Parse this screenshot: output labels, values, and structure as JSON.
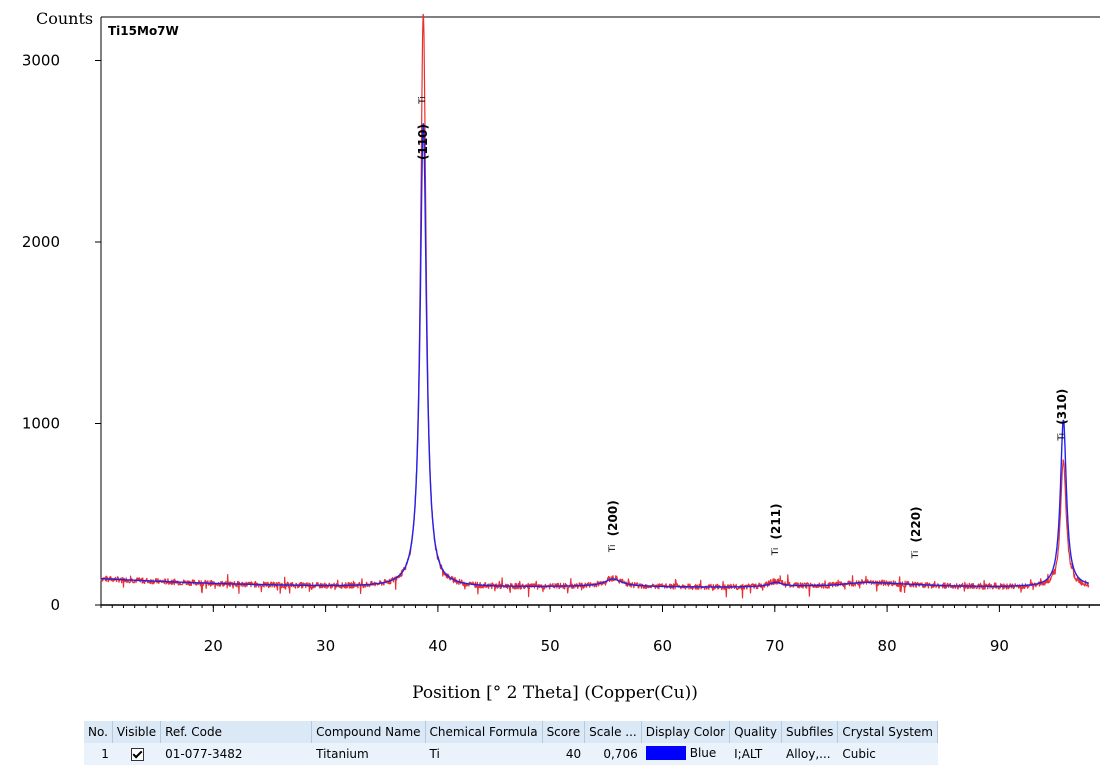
{
  "chart_data": {
    "type": "line",
    "sample_label": "Ti15Mo7W",
    "ylabel": "Counts",
    "xlabel": "Position [°  2 Theta] (Copper(Cu))",
    "xlim": [
      10,
      98
    ],
    "ylim": [
      0,
      3200
    ],
    "x_ticks": [
      20,
      30,
      40,
      50,
      60,
      70,
      80,
      90
    ],
    "y_ticks": [
      0,
      1000,
      2000,
      3000
    ],
    "baseline": [
      [
        10,
        145
      ],
      [
        15,
        130
      ],
      [
        20,
        118
      ],
      [
        25,
        110
      ],
      [
        30,
        103
      ],
      [
        35,
        100
      ],
      [
        45,
        98
      ],
      [
        50,
        100
      ],
      [
        55,
        103
      ],
      [
        60,
        100
      ],
      [
        65,
        98
      ],
      [
        70,
        100
      ],
      [
        75,
        108
      ],
      [
        78,
        125
      ],
      [
        80,
        120
      ],
      [
        85,
        105
      ],
      [
        90,
        100
      ],
      [
        95,
        100
      ],
      [
        98,
        102
      ]
    ],
    "series": [
      {
        "color": "#e8312f",
        "peaks": [
          {
            "center": 38.7,
            "height": 3160,
            "width": 0.3
          },
          {
            "center": 55.6,
            "height": 45,
            "width": 0.9
          },
          {
            "center": 70.1,
            "height": 30,
            "width": 0.7
          },
          {
            "center": 95.7,
            "height": 700,
            "width": 0.3
          }
        ],
        "noise": 16
      },
      {
        "color": "#2222ee",
        "peaks": [
          {
            "center": 38.7,
            "height": 2560,
            "width": 0.34
          },
          {
            "center": 55.6,
            "height": 40,
            "width": 0.9
          },
          {
            "center": 70.1,
            "height": 25,
            "width": 0.7
          },
          {
            "center": 95.7,
            "height": 920,
            "width": 0.32
          }
        ],
        "noise": 0
      }
    ],
    "reference_markers": [
      {
        "position": 38.6,
        "label": "(110)",
        "symbol": "Ti"
      },
      {
        "position": 55.5,
        "label": "(200)",
        "symbol": "Ti"
      },
      {
        "position": 70.0,
        "label": "(211)",
        "symbol": "Ti"
      },
      {
        "position": 82.5,
        "label": "(220)",
        "symbol": "Ti"
      },
      {
        "position": 95.5,
        "label": "(310)",
        "symbol": "Ti"
      }
    ],
    "grid": false,
    "legend": "none"
  },
  "phase_table": {
    "headers": [
      "No.",
      "Visible",
      "Ref. Code",
      "Compound Name",
      "Chemical Formula",
      "Score",
      "Scale ...",
      "Display Color",
      "Quality",
      "Subfiles",
      "Crystal System"
    ],
    "rows": [
      {
        "no": "1",
        "visible": true,
        "ref_code": "01-077-3482",
        "compound_name": "Titanium",
        "chemical_formula": "Ti",
        "score": "40",
        "scale": "0,706",
        "display_color_label": "Blue",
        "display_color": "#0000ff",
        "quality": "I;ALT",
        "subfiles": "Alloy,...",
        "crystal_system": "Cubic"
      }
    ]
  }
}
